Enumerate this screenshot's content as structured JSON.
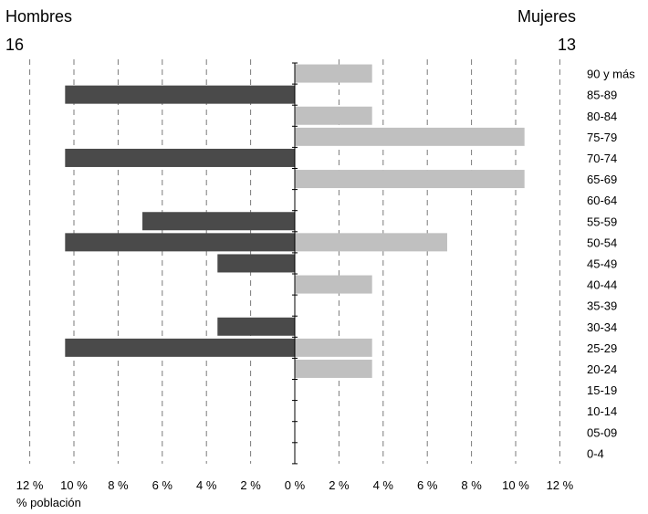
{
  "chart_data": {
    "type": "bar",
    "orientation": "horizontal",
    "layout": "population-pyramid",
    "left_title": "Hombres",
    "left_total": "16",
    "right_title": "Mujeres",
    "right_total": "13",
    "xlabel": "% población",
    "x_ticks": [
      "12 %",
      "10 %",
      "8 %",
      "6 %",
      "4 %",
      "2 %",
      "0 %",
      "2 %",
      "4 %",
      "6 %",
      "8 %",
      "10 %",
      "12 %"
    ],
    "xlim": [
      -12,
      12
    ],
    "grid": "vertical dashed",
    "categories": [
      "90 y más",
      "85-89",
      "80-84",
      "75-79",
      "70-74",
      "65-69",
      "60-64",
      "55-59",
      "50-54",
      "45-49",
      "40-44",
      "35-39",
      "30-34",
      "25-29",
      "20-24",
      "15-19",
      "10-14",
      "05-09",
      "0-4"
    ],
    "series": [
      {
        "name": "Hombres",
        "side": "left",
        "color": "#4a4a4a",
        "values": [
          0,
          10.4,
          0,
          0,
          10.4,
          0,
          0,
          6.9,
          10.4,
          3.5,
          0,
          0,
          3.5,
          10.4,
          0,
          0,
          0,
          0,
          0
        ]
      },
      {
        "name": "Mujeres",
        "side": "right",
        "color": "#c0c0c0",
        "values": [
          3.5,
          0,
          3.5,
          10.4,
          0,
          10.4,
          0,
          0,
          6.9,
          0,
          3.5,
          0,
          0,
          3.5,
          3.5,
          0,
          0,
          0,
          0
        ]
      }
    ]
  }
}
